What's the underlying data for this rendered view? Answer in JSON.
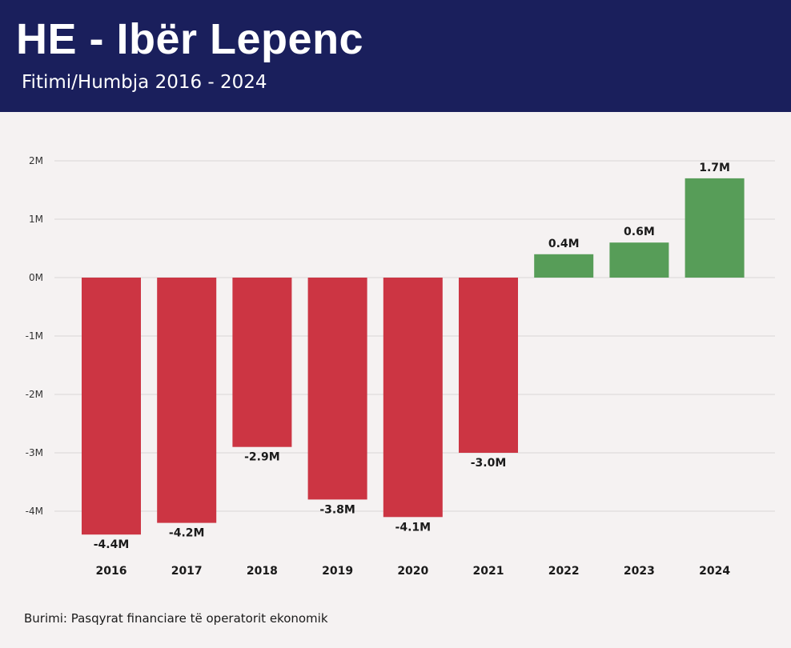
{
  "header": {
    "title": "HE - Ibër Lepenc",
    "subtitle": "Fitimi/Humbja 2016 - 2024"
  },
  "footer": {
    "source": "Burimi: Pasqyrat financiare të operatorit ekonomik"
  },
  "colors": {
    "header_bg": "#1a1f5c",
    "negative": "#cc3543",
    "positive": "#579d58",
    "grid": "#d9d5d5",
    "text": "#1a1a1a"
  },
  "chart_data": {
    "type": "bar",
    "categories": [
      "2016",
      "2017",
      "2018",
      "2019",
      "2020",
      "2021",
      "2022",
      "2023",
      "2024"
    ],
    "values": [
      -4.4,
      -4.2,
      -2.9,
      -3.8,
      -4.1,
      -3.0,
      0.4,
      0.6,
      1.7
    ],
    "data_labels": [
      "-4.4M",
      "-4.2M",
      "-2.9M",
      "-3.8M",
      "-4.1M",
      "-3.0M",
      "0.4M",
      "0.6M",
      "1.7M"
    ],
    "ylim": [
      -4.5,
      2
    ],
    "yticks": [
      2,
      1,
      0,
      -1,
      -2,
      -3,
      -4
    ],
    "ytick_labels": [
      "2M",
      "1M",
      "0M",
      "-1M",
      "-2M",
      "-3M",
      "-4M"
    ],
    "grid": true
  }
}
